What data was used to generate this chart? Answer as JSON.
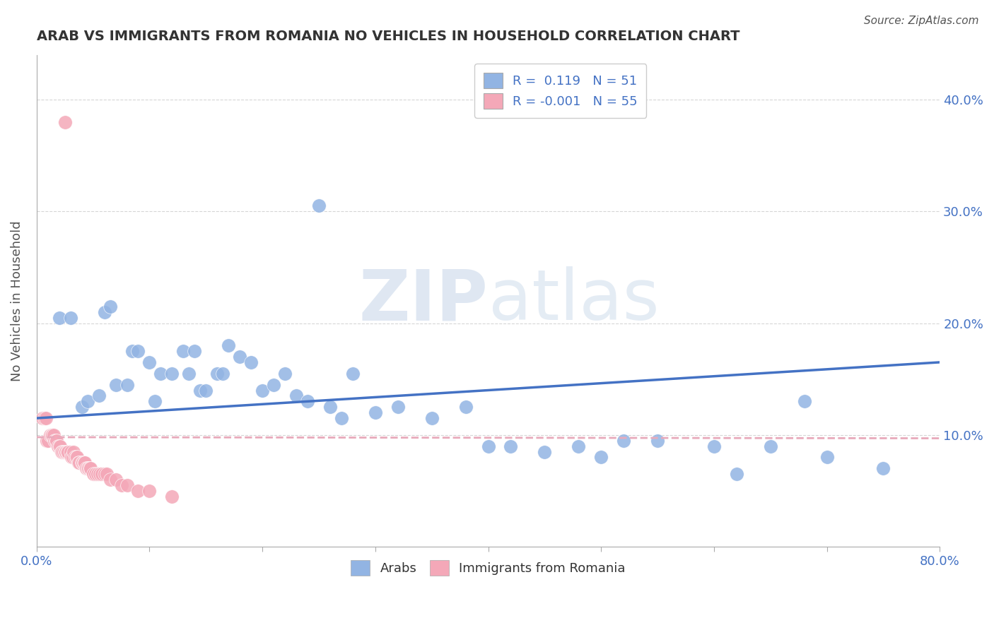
{
  "title": "ARAB VS IMMIGRANTS FROM ROMANIA NO VEHICLES IN HOUSEHOLD CORRELATION CHART",
  "source": "Source: ZipAtlas.com",
  "ylabel": "No Vehicles in Household",
  "xlim": [
    0.0,
    0.8
  ],
  "ylim": [
    0.0,
    0.44
  ],
  "xticks": [
    0.0,
    0.1,
    0.2,
    0.3,
    0.4,
    0.5,
    0.6,
    0.7,
    0.8
  ],
  "xticklabels": [
    "0.0%",
    "",
    "",
    "",
    "",
    "",
    "",
    "",
    "80.0%"
  ],
  "ytick_positions": [
    0.1,
    0.2,
    0.3,
    0.4
  ],
  "ytick_labels": [
    "10.0%",
    "20.0%",
    "30.0%",
    "40.0%"
  ],
  "legend_r_arab": " 0.119",
  "legend_n_arab": "51",
  "legend_r_romania": "-0.001",
  "legend_n_romania": "55",
  "arab_color": "#92b4e3",
  "romania_color": "#f4a8b8",
  "arab_line_color": "#4472c4",
  "romania_line_color": "#e8aabb",
  "watermark": "ZIPatlas",
  "background_color": "#ffffff",
  "grid_color": "#cccccc",
  "title_color": "#333333",
  "axis_label_color": "#555555",
  "source_color": "#555555",
  "arab_scatter_x": [
    0.02,
    0.03,
    0.04,
    0.045,
    0.055,
    0.06,
    0.065,
    0.07,
    0.08,
    0.085,
    0.09,
    0.1,
    0.105,
    0.11,
    0.12,
    0.13,
    0.135,
    0.14,
    0.145,
    0.15,
    0.16,
    0.165,
    0.17,
    0.18,
    0.19,
    0.2,
    0.21,
    0.22,
    0.23,
    0.24,
    0.25,
    0.26,
    0.27,
    0.28,
    0.3,
    0.32,
    0.35,
    0.38,
    0.4,
    0.42,
    0.45,
    0.48,
    0.5,
    0.52,
    0.55,
    0.6,
    0.62,
    0.65,
    0.68,
    0.7,
    0.75
  ],
  "arab_scatter_y": [
    0.205,
    0.205,
    0.125,
    0.13,
    0.135,
    0.21,
    0.215,
    0.145,
    0.145,
    0.175,
    0.175,
    0.165,
    0.13,
    0.155,
    0.155,
    0.175,
    0.155,
    0.175,
    0.14,
    0.14,
    0.155,
    0.155,
    0.18,
    0.17,
    0.165,
    0.14,
    0.145,
    0.155,
    0.135,
    0.13,
    0.305,
    0.125,
    0.115,
    0.155,
    0.12,
    0.125,
    0.115,
    0.125,
    0.09,
    0.09,
    0.085,
    0.09,
    0.08,
    0.095,
    0.095,
    0.09,
    0.065,
    0.09,
    0.13,
    0.08,
    0.07
  ],
  "romania_scatter_x": [
    0.005,
    0.007,
    0.008,
    0.009,
    0.01,
    0.012,
    0.013,
    0.014,
    0.015,
    0.016,
    0.017,
    0.018,
    0.019,
    0.02,
    0.021,
    0.022,
    0.023,
    0.024,
    0.025,
    0.026,
    0.027,
    0.028,
    0.03,
    0.031,
    0.032,
    0.033,
    0.034,
    0.035,
    0.036,
    0.037,
    0.038,
    0.04,
    0.041,
    0.042,
    0.043,
    0.044,
    0.045,
    0.046,
    0.047,
    0.048,
    0.05,
    0.052,
    0.054,
    0.056,
    0.058,
    0.06,
    0.062,
    0.065,
    0.07,
    0.075,
    0.08,
    0.09,
    0.1,
    0.12,
    0.025
  ],
  "romania_scatter_y": [
    0.115,
    0.115,
    0.115,
    0.095,
    0.095,
    0.1,
    0.1,
    0.1,
    0.1,
    0.095,
    0.095,
    0.095,
    0.09,
    0.09,
    0.09,
    0.085,
    0.085,
    0.085,
    0.085,
    0.085,
    0.085,
    0.085,
    0.085,
    0.08,
    0.08,
    0.085,
    0.08,
    0.08,
    0.08,
    0.075,
    0.075,
    0.075,
    0.075,
    0.075,
    0.075,
    0.07,
    0.07,
    0.07,
    0.07,
    0.07,
    0.065,
    0.065,
    0.065,
    0.065,
    0.065,
    0.065,
    0.065,
    0.06,
    0.06,
    0.055,
    0.055,
    0.05,
    0.05,
    0.045,
    0.38
  ],
  "arab_trend_x": [
    0.0,
    0.8
  ],
  "arab_trend_y": [
    0.115,
    0.165
  ],
  "romania_trend_x": [
    0.0,
    0.8
  ],
  "romania_trend_y": [
    0.098,
    0.097
  ]
}
